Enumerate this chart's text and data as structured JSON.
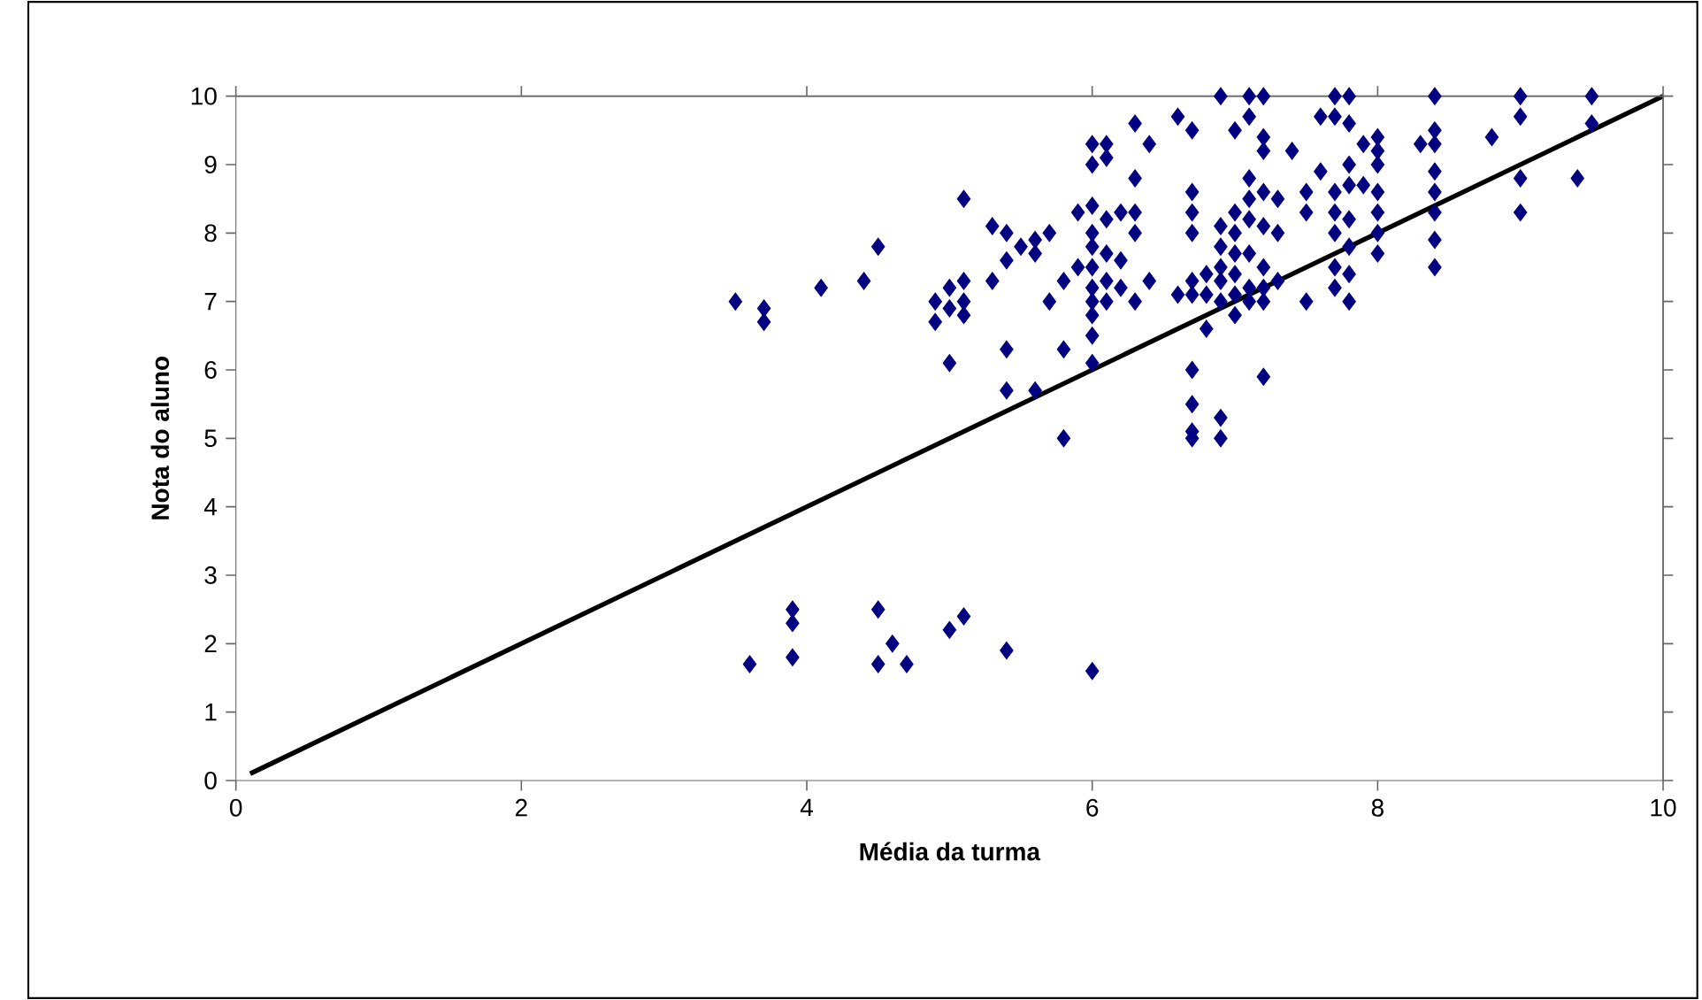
{
  "chart_data": {
    "type": "scatter",
    "xlabel": "Média da turma",
    "ylabel": "Nota do aluno",
    "xlim": [
      0,
      10
    ],
    "ylim": [
      0,
      10
    ],
    "xticks": [
      0,
      2,
      4,
      6,
      8,
      10
    ],
    "yticks": [
      0,
      1,
      2,
      3,
      4,
      5,
      6,
      7,
      8,
      9,
      10
    ],
    "grid": false,
    "marker": "diamond",
    "series": [
      {
        "color": "#000080",
        "x": [
          3.5,
          3.7,
          3.7,
          4.1,
          4.4,
          4.5,
          4.9,
          4.9,
          5.0,
          5.0,
          5.0,
          5.1,
          5.1,
          5.1,
          5.1,
          5.3,
          5.3,
          5.4,
          5.4,
          5.4,
          5.4,
          5.5,
          5.6,
          5.6,
          5.6,
          5.7,
          5.7,
          5.8,
          5.8,
          5.8,
          5.9,
          5.9,
          6.0,
          6.0,
          6.0,
          6.0,
          6.0,
          6.0,
          6.0,
          6.0,
          6.0,
          6.0,
          6.0,
          6.1,
          6.1,
          6.1,
          6.1,
          6.1,
          6.1,
          6.2,
          6.2,
          6.2,
          6.3,
          6.3,
          6.3,
          6.3,
          6.3,
          6.4,
          6.4,
          6.6,
          6.6,
          6.7,
          6.7,
          6.7,
          6.7,
          6.7,
          6.7,
          6.7,
          6.7,
          6.7,
          6.7,
          6.8,
          6.8,
          6.8,
          6.9,
          6.9,
          6.9,
          6.9,
          6.9,
          6.9,
          6.9,
          6.9,
          7.0,
          7.0,
          7.0,
          7.0,
          7.0,
          7.0,
          7.0,
          7.1,
          7.1,
          7.1,
          7.1,
          7.1,
          7.1,
          7.1,
          7.1,
          7.2,
          7.2,
          7.2,
          7.2,
          7.2,
          7.2,
          7.2,
          7.2,
          7.2,
          7.3,
          7.3,
          7.3,
          7.4,
          7.5,
          7.5,
          7.5,
          7.6,
          7.6,
          7.7,
          7.7,
          7.7,
          7.7,
          7.7,
          7.7,
          7.7,
          7.8,
          7.8,
          7.8,
          7.8,
          7.8,
          7.8,
          7.8,
          7.8,
          7.9,
          7.9,
          8.0,
          8.0,
          8.0,
          8.0,
          8.0,
          8.0,
          8.0,
          8.3,
          8.4,
          8.4,
          8.4,
          8.4,
          8.4,
          8.4,
          8.4,
          8.4,
          8.8,
          9.0,
          9.0,
          9.0,
          9.0,
          9.4,
          9.5,
          9.5,
          3.6,
          3.9,
          3.9,
          3.9,
          4.5,
          4.5,
          4.6,
          4.7,
          5.0,
          5.1,
          5.4,
          6.0
        ],
        "values": [
          7.0,
          6.9,
          6.7,
          7.2,
          7.3,
          7.8,
          7.0,
          6.7,
          7.2,
          6.9,
          6.1,
          7.3,
          7.0,
          6.8,
          8.5,
          7.3,
          8.1,
          8.0,
          7.6,
          6.3,
          5.7,
          7.8,
          7.9,
          7.7,
          5.7,
          8.0,
          7.0,
          7.3,
          6.3,
          5.0,
          8.3,
          7.5,
          9.3,
          9.0,
          8.4,
          8.0,
          7.8,
          7.5,
          7.2,
          7.0,
          6.8,
          6.5,
          6.1,
          9.3,
          9.1,
          8.2,
          7.7,
          7.3,
          7.0,
          8.3,
          7.6,
          7.2,
          9.6,
          8.8,
          8.3,
          8.0,
          7.0,
          9.3,
          7.3,
          9.7,
          7.1,
          9.5,
          8.6,
          8.3,
          8.0,
          7.3,
          7.1,
          6.0,
          5.5,
          5.1,
          5.0,
          7.4,
          7.1,
          6.6,
          10,
          8.1,
          7.8,
          7.5,
          7.3,
          7.0,
          5.3,
          5.0,
          9.5,
          8.3,
          8.0,
          7.7,
          7.4,
          7.1,
          6.8,
          10,
          9.7,
          8.8,
          8.5,
          8.2,
          7.7,
          7.2,
          7.0,
          10,
          9.4,
          9.2,
          8.6,
          8.1,
          7.5,
          7.2,
          7.0,
          5.9,
          8.5,
          8.0,
          7.3,
          9.2,
          8.6,
          8.3,
          7.0,
          9.7,
          8.9,
          10,
          9.7,
          8.6,
          8.3,
          8.0,
          7.5,
          7.2,
          10,
          9.6,
          9.0,
          8.7,
          8.2,
          7.8,
          7.4,
          7.0,
          9.3,
          8.7,
          9.4,
          9.2,
          9.0,
          8.6,
          8.3,
          8.0,
          7.7,
          9.3,
          10,
          9.5,
          9.3,
          8.9,
          8.6,
          8.3,
          7.9,
          7.5,
          9.4,
          10,
          9.7,
          8.8,
          8.3,
          8.8,
          10,
          9.6,
          1.7,
          2.5,
          2.3,
          1.8,
          2.5,
          1.7,
          2.0,
          1.7,
          2.2,
          2.4,
          1.9,
          1.6
        ]
      },
      {
        "type": "line",
        "color": "#000000",
        "marker": "none",
        "line_style": "solid",
        "x": [
          0.1,
          10
        ],
        "values": [
          0.1,
          10
        ]
      }
    ]
  }
}
